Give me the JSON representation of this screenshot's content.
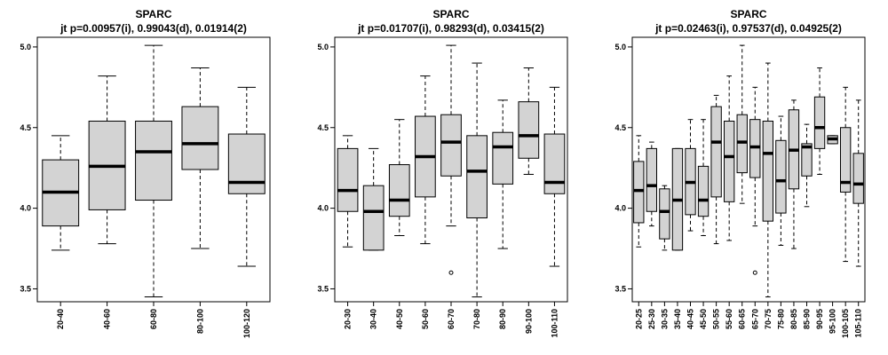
{
  "chart_data": [
    {
      "type": "boxplot",
      "title": "SPARC",
      "subtitle": "jt p=0.00957(i), 0.99043(d), 0.01914(2)",
      "ylim": [
        3.42,
        5.06
      ],
      "yticks": [
        "3.5",
        "4.0",
        "4.5",
        "5.0"
      ],
      "categories": [
        "20-40",
        "40-60",
        "60-80",
        "80-100",
        "100-120"
      ],
      "boxes": [
        {
          "min": 3.74,
          "q1": 3.89,
          "median": 4.1,
          "q3": 4.3,
          "max": 4.45,
          "outliers": []
        },
        {
          "min": 3.78,
          "q1": 3.99,
          "median": 4.26,
          "q3": 4.54,
          "max": 4.82,
          "outliers": []
        },
        {
          "min": 3.45,
          "q1": 4.05,
          "median": 4.35,
          "q3": 4.54,
          "max": 5.01,
          "outliers": []
        },
        {
          "min": 3.75,
          "q1": 4.24,
          "median": 4.4,
          "q3": 4.63,
          "max": 4.87,
          "outliers": []
        },
        {
          "min": 3.64,
          "q1": 4.09,
          "median": 4.16,
          "q3": 4.46,
          "max": 4.75,
          "outliers": []
        }
      ]
    },
    {
      "type": "boxplot",
      "title": "SPARC",
      "subtitle": "jt p=0.01707(i), 0.98293(d), 0.03415(2)",
      "ylim": [
        3.42,
        5.06
      ],
      "yticks": [
        "3.5",
        "4.0",
        "4.5",
        "5.0"
      ],
      "categories": [
        "20-30",
        "30-40",
        "40-50",
        "50-60",
        "60-70",
        "70-80",
        "80-90",
        "90-100",
        "100-110"
      ],
      "boxes": [
        {
          "min": 3.76,
          "q1": 3.98,
          "median": 4.11,
          "q3": 4.37,
          "max": 4.45,
          "outliers": []
        },
        {
          "min": 3.74,
          "q1": 3.74,
          "median": 3.98,
          "q3": 4.14,
          "max": 4.37,
          "outliers": []
        },
        {
          "min": 3.83,
          "q1": 3.95,
          "median": 4.05,
          "q3": 4.27,
          "max": 4.55,
          "outliers": []
        },
        {
          "min": 3.78,
          "q1": 4.07,
          "median": 4.32,
          "q3": 4.57,
          "max": 4.82,
          "outliers": []
        },
        {
          "min": 3.89,
          "q1": 4.2,
          "median": 4.41,
          "q3": 4.58,
          "max": 5.01,
          "outliers": [
            3.6
          ]
        },
        {
          "min": 3.45,
          "q1": 3.94,
          "median": 4.23,
          "q3": 4.45,
          "max": 4.9,
          "outliers": []
        },
        {
          "min": 3.75,
          "q1": 4.15,
          "median": 4.38,
          "q3": 4.47,
          "max": 4.67,
          "outliers": []
        },
        {
          "min": 4.21,
          "q1": 4.31,
          "median": 4.45,
          "q3": 4.66,
          "max": 4.87,
          "outliers": []
        },
        {
          "min": 3.64,
          "q1": 4.09,
          "median": 4.16,
          "q3": 4.46,
          "max": 4.75,
          "outliers": []
        }
      ]
    },
    {
      "type": "boxplot",
      "title": "SPARC",
      "subtitle": "jt p=0.02463(i), 0.97537(d), 0.04925(2)",
      "ylim": [
        3.42,
        5.06
      ],
      "yticks": [
        "3.5",
        "4.0",
        "4.5",
        "5.0"
      ],
      "categories": [
        "20-25",
        "25-30",
        "30-35",
        "35-40",
        "40-45",
        "45-50",
        "50-55",
        "55-60",
        "60-65",
        "65-70",
        "70-75",
        "75-80",
        "80-85",
        "85-90",
        "90-95",
        "95-100",
        "100-105",
        "105-110"
      ],
      "boxes": [
        {
          "min": 3.76,
          "q1": 3.91,
          "median": 4.11,
          "q3": 4.29,
          "max": 4.45,
          "outliers": []
        },
        {
          "min": 3.89,
          "q1": 3.98,
          "median": 4.14,
          "q3": 4.37,
          "max": 4.41,
          "outliers": []
        },
        {
          "min": 3.74,
          "q1": 3.81,
          "median": 3.98,
          "q3": 4.12,
          "max": 4.14,
          "outliers": []
        },
        {
          "min": 3.74,
          "q1": 3.74,
          "median": 4.05,
          "q3": 4.37,
          "max": 4.37,
          "outliers": []
        },
        {
          "min": 3.86,
          "q1": 3.96,
          "median": 4.16,
          "q3": 4.37,
          "max": 4.55,
          "outliers": []
        },
        {
          "min": 3.83,
          "q1": 3.95,
          "median": 4.05,
          "q3": 4.26,
          "max": 4.55,
          "outliers": []
        },
        {
          "min": 3.78,
          "q1": 4.07,
          "median": 4.41,
          "q3": 4.63,
          "max": 4.7,
          "outliers": []
        },
        {
          "min": 3.8,
          "q1": 4.04,
          "median": 4.32,
          "q3": 4.54,
          "max": 4.82,
          "outliers": []
        },
        {
          "min": 4.03,
          "q1": 4.22,
          "median": 4.41,
          "q3": 4.58,
          "max": 5.01,
          "outliers": []
        },
        {
          "min": 3.89,
          "q1": 4.19,
          "median": 4.38,
          "q3": 4.55,
          "max": 4.75,
          "outliers": [
            3.6
          ]
        },
        {
          "min": 3.45,
          "q1": 3.92,
          "median": 4.34,
          "q3": 4.54,
          "max": 4.9,
          "outliers": []
        },
        {
          "min": 3.77,
          "q1": 3.97,
          "median": 4.17,
          "q3": 4.42,
          "max": 4.57,
          "outliers": []
        },
        {
          "min": 3.75,
          "q1": 4.12,
          "median": 4.36,
          "q3": 4.61,
          "max": 4.67,
          "outliers": []
        },
        {
          "min": 4.01,
          "q1": 4.2,
          "median": 4.38,
          "q3": 4.4,
          "max": 4.52,
          "outliers": []
        },
        {
          "min": 4.21,
          "q1": 4.37,
          "median": 4.5,
          "q3": 4.69,
          "max": 4.87,
          "outliers": []
        },
        {
          "min": 4.4,
          "q1": 4.4,
          "median": 4.43,
          "q3": 4.45,
          "max": 4.45,
          "outliers": []
        },
        {
          "min": 3.67,
          "q1": 4.1,
          "median": 4.16,
          "q3": 4.5,
          "max": 4.75,
          "outliers": []
        },
        {
          "min": 3.64,
          "q1": 4.03,
          "median": 4.15,
          "q3": 4.34,
          "max": 4.67,
          "outliers": []
        }
      ]
    }
  ]
}
